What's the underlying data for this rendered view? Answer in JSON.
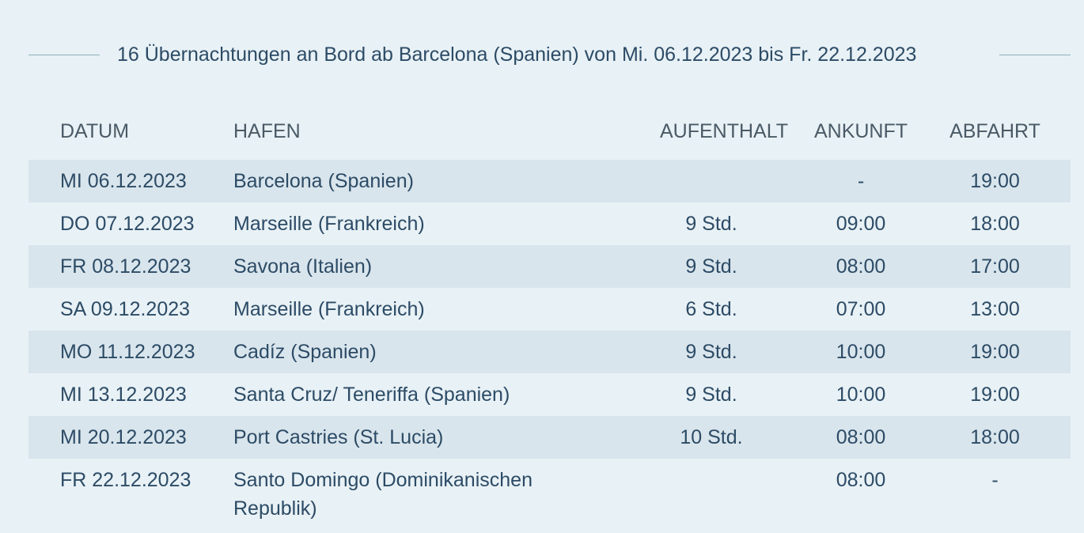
{
  "headline": "16 Übernachtungen an Bord ab Barcelona (Spanien) von Mi. 06.12.2023 bis Fr. 22.12.2023",
  "columns": {
    "date": "DATUM",
    "port": "HAFEN",
    "stay": "AUFENTHALT",
    "arrival": "ANKUNFT",
    "departure": "ABFAHRT"
  },
  "rows": [
    {
      "date": "MI 06.12.2023",
      "port": "Barcelona (Spanien)",
      "stay": "",
      "arrival": "-",
      "departure": "19:00"
    },
    {
      "date": "DO 07.12.2023",
      "port": "Marseille (Frankreich)",
      "stay": "9 Std.",
      "arrival": "09:00",
      "departure": "18:00"
    },
    {
      "date": "FR 08.12.2023",
      "port": "Savona (Italien)",
      "stay": "9 Std.",
      "arrival": "08:00",
      "departure": "17:00"
    },
    {
      "date": "SA 09.12.2023",
      "port": "Marseille (Frankreich)",
      "stay": "6 Std.",
      "arrival": "07:00",
      "departure": "13:00"
    },
    {
      "date": "MO 11.12.2023",
      "port": "Cadíz (Spanien)",
      "stay": "9 Std.",
      "arrival": "10:00",
      "departure": "19:00"
    },
    {
      "date": "MI 13.12.2023",
      "port": "Santa Cruz/ Teneriffa (Spanien)",
      "stay": "9 Std.",
      "arrival": "10:00",
      "departure": "19:00"
    },
    {
      "date": "MI 20.12.2023",
      "port": "Port Castries (St. Lucia)",
      "stay": "10 Std.",
      "arrival": "08:00",
      "departure": "18:00"
    },
    {
      "date": "FR 22.12.2023",
      "port": "Santo Domingo (Dominikanischen Republik)",
      "stay": "",
      "arrival": "08:00",
      "departure": "-"
    }
  ],
  "colors": {
    "background": "#e8f1f5",
    "row_shade": "#d9e5ec",
    "text": "#2c4b66",
    "header_text": "#4a5a66",
    "rule": "#8fb0bd"
  }
}
